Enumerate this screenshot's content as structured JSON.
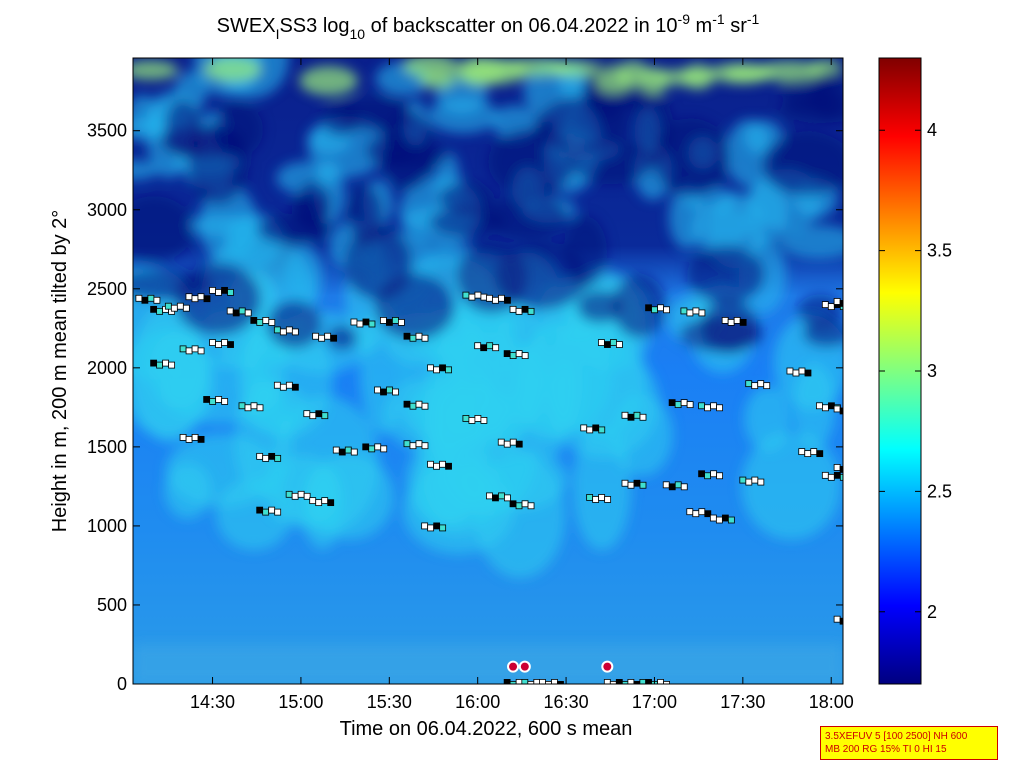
{
  "chart_data": {
    "type": "heatmap",
    "title": {
      "prefix": "SWEX",
      "sub1": "I",
      "mid": "SS3 log",
      "sub2": "10",
      "mid2": " of backscatter on 06.04.2022 in 10",
      "sup1": "-9",
      "mid3": " m",
      "sup2": "-1",
      "mid4": " sr",
      "sup3": "-1"
    },
    "xlabel": "Time on 06.04.2022, 600 s mean",
    "ylabel": "Height in m, 200 m mean tilted by 2°",
    "xlim": [
      "14:03",
      "18:04"
    ],
    "ylim": [
      0,
      3960
    ],
    "x_ticks": [
      "14:30",
      "15:00",
      "15:30",
      "16:00",
      "16:30",
      "17:00",
      "17:30",
      "18:00"
    ],
    "y_ticks": [
      0,
      500,
      1000,
      1500,
      2000,
      2500,
      3000,
      3500
    ],
    "colorbar": {
      "range": [
        1.7,
        4.3
      ],
      "ticks": [
        2,
        2.5,
        3,
        3.5,
        4
      ],
      "colormap": "jet"
    },
    "layer_points": [
      [
        "14:05",
        2440
      ],
      [
        "14:10",
        2370
      ],
      [
        "14:15",
        2390
      ],
      [
        "14:22",
        2450
      ],
      [
        "14:30",
        2490
      ],
      [
        "14:36",
        2360
      ],
      [
        "14:44",
        2300
      ],
      [
        "14:52",
        2240
      ],
      [
        "15:05",
        2200
      ],
      [
        "15:18",
        2290
      ],
      [
        "15:28",
        2300
      ],
      [
        "15:36",
        2200
      ],
      [
        "15:56",
        2460
      ],
      [
        "16:04",
        2440
      ],
      [
        "16:12",
        2370
      ],
      [
        "16:42",
        2160
      ],
      [
        "16:58",
        2380
      ],
      [
        "17:10",
        2360
      ],
      [
        "17:24",
        2300
      ],
      [
        "17:58",
        2400
      ],
      [
        "18:02",
        2420
      ],
      [
        "14:10",
        2030
      ],
      [
        "14:20",
        2120
      ],
      [
        "14:30",
        2160
      ],
      [
        "15:44",
        2000
      ],
      [
        "16:00",
        2140
      ],
      [
        "16:10",
        2090
      ],
      [
        "17:32",
        1900
      ],
      [
        "17:46",
        1980
      ],
      [
        "17:56",
        1760
      ],
      [
        "18:02",
        1740
      ],
      [
        "14:28",
        1800
      ],
      [
        "14:40",
        1760
      ],
      [
        "14:52",
        1890
      ],
      [
        "15:02",
        1710
      ],
      [
        "15:26",
        1860
      ],
      [
        "15:36",
        1770
      ],
      [
        "15:56",
        1680
      ],
      [
        "16:08",
        1530
      ],
      [
        "16:36",
        1620
      ],
      [
        "16:50",
        1700
      ],
      [
        "17:06",
        1780
      ],
      [
        "17:16",
        1760
      ],
      [
        "14:20",
        1560
      ],
      [
        "14:46",
        1440
      ],
      [
        "15:12",
        1480
      ],
      [
        "15:22",
        1500
      ],
      [
        "15:36",
        1520
      ],
      [
        "15:44",
        1390
      ],
      [
        "16:50",
        1270
      ],
      [
        "17:04",
        1260
      ],
      [
        "17:16",
        1330
      ],
      [
        "17:30",
        1290
      ],
      [
        "17:50",
        1470
      ],
      [
        "17:58",
        1320
      ],
      [
        "18:02",
        1370
      ],
      [
        "14:46",
        1100
      ],
      [
        "14:56",
        1200
      ],
      [
        "15:04",
        1160
      ],
      [
        "15:42",
        1000
      ],
      [
        "16:04",
        1190
      ],
      [
        "16:12",
        1140
      ],
      [
        "16:38",
        1180
      ],
      [
        "17:12",
        1090
      ],
      [
        "17:20",
        1050
      ],
      [
        "18:02",
        410
      ],
      [
        "16:10",
        10
      ],
      [
        "16:16",
        10
      ],
      [
        "16:22",
        10
      ],
      [
        "16:44",
        10
      ],
      [
        "16:52",
        10
      ],
      [
        "16:58",
        10
      ]
    ],
    "precip_markers": [
      [
        "16:12",
        110
      ],
      [
        "16:16",
        110
      ],
      [
        "16:44",
        110
      ]
    ]
  },
  "info_box": {
    "line1": "3.5XEFUV 5 [100 2500] NH 600",
    "line2": "MB 200 RG 15% TI 0 HI 15"
  }
}
